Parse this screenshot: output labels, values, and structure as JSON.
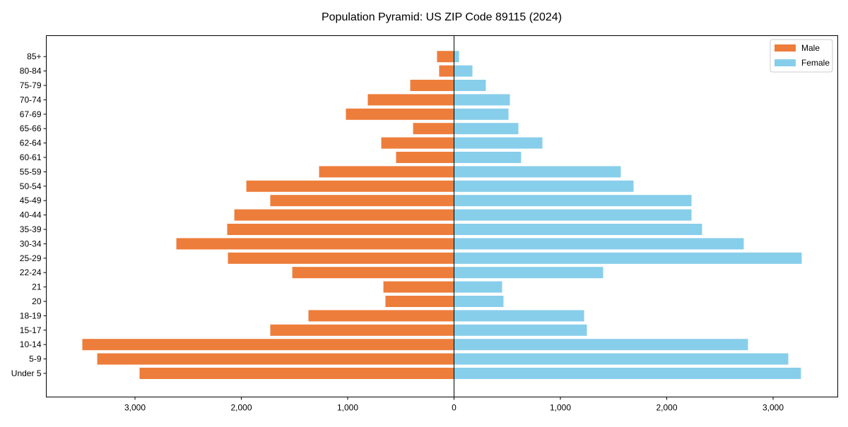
{
  "chart_data": {
    "type": "bar",
    "orientation": "horizontal",
    "title": "Population Pyramid: US ZIP Code 89115 (2024)",
    "xlabel": "",
    "ylabel": "",
    "categories": [
      "Under 5",
      "5-9",
      "10-14",
      "15-17",
      "18-19",
      "20",
      "21",
      "22-24",
      "25-29",
      "30-34",
      "35-39",
      "40-44",
      "45-49",
      "50-54",
      "55-59",
      "60-61",
      "62-64",
      "65-66",
      "67-69",
      "70-74",
      "75-79",
      "80-84",
      "85+"
    ],
    "series": [
      {
        "name": "Male",
        "color": "#ED7D3A",
        "values": [
          2957,
          3355,
          3495,
          1728,
          1369,
          645,
          664,
          1521,
          2126,
          2611,
          2133,
          2066,
          1728,
          1953,
          1269,
          545,
          684,
          385,
          1017,
          811,
          412,
          140,
          160
        ]
      },
      {
        "name": "Female",
        "color": "#87CEEB",
        "values": [
          3262,
          3143,
          2764,
          1249,
          1223,
          465,
          452,
          1402,
          3269,
          2724,
          2332,
          2233,
          2233,
          1688,
          1568,
          631,
          831,
          605,
          512,
          525,
          299,
          173,
          47
        ]
      }
    ],
    "xlim": [
      -3834,
      3608
    ],
    "xticks": [
      -3000,
      -2000,
      -1000,
      0,
      1000,
      2000,
      3000
    ],
    "xtick_labels": [
      "3,000",
      "2,000",
      "1,000",
      "0",
      "1,000",
      "2,000",
      "3,000"
    ],
    "grid": false,
    "legend_position": "top-right"
  }
}
